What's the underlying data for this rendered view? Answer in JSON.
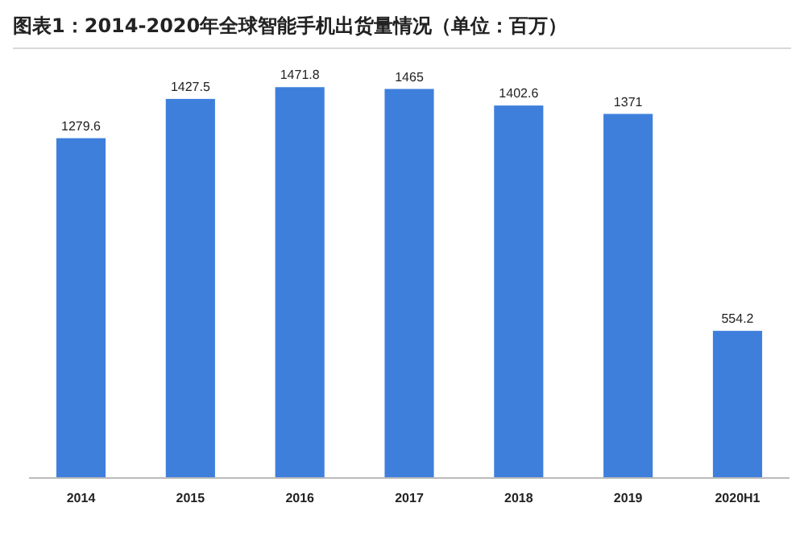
{
  "chart_data": {
    "type": "bar",
    "title": "图表1：2014-2020年全球智能手机出货量情况（单位：百万）",
    "categories": [
      "2014",
      "2015",
      "2016",
      "2017",
      "2018",
      "2019",
      "2020H1"
    ],
    "values": [
      1279.6,
      1427.5,
      1471.8,
      1465,
      1402.6,
      1371,
      554.2
    ],
    "color": "#3f7fdc",
    "data_labels": true
  }
}
